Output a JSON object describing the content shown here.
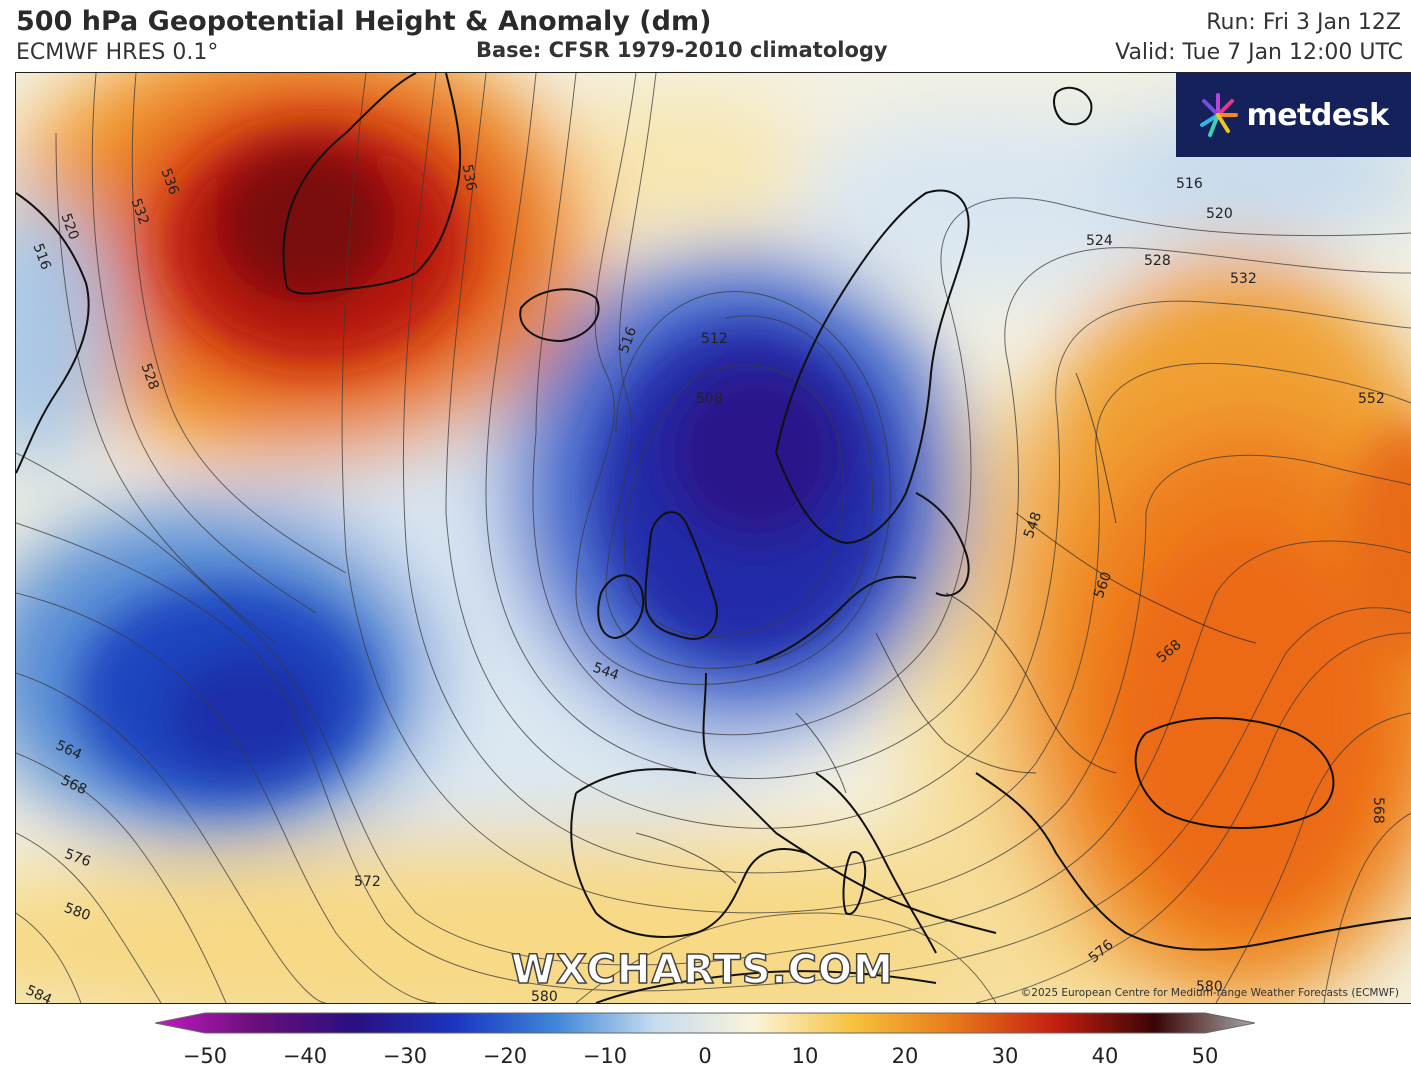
{
  "header": {
    "title": "500 hPa Geopotential Height & Anomaly (dm)",
    "model": "ECMWF HRES 0.1°",
    "base": "Base: CFSR 1979-2010 climatology",
    "run": "Run: Fri 3 Jan 12Z",
    "valid": "Valid: Tue 7 Jan 12:00 UTC"
  },
  "branding": {
    "logo": "metdesk",
    "watermark": "WXCHARTS.COM",
    "copyright": "©2025 European Centre for Medium-range Weather Forecasts (ECMWF)"
  },
  "contour_labels": [
    "508",
    "512",
    "516",
    "520",
    "524",
    "528",
    "532",
    "536",
    "544",
    "548",
    "552",
    "560",
    "564",
    "568",
    "572",
    "576",
    "580",
    "584"
  ],
  "colorbar": {
    "ticks": [
      "−50",
      "−40",
      "−30",
      "−20",
      "−10",
      "0",
      "10",
      "20",
      "30",
      "40",
      "50"
    ],
    "colors": [
      "#c21ac2",
      "#6a0f7a",
      "#2a0f80",
      "#1a35c0",
      "#3f86d8",
      "#c6dcef",
      "#fbf4d8",
      "#f6c13b",
      "#e8781a",
      "#c41e10",
      "#3a0505",
      "#a8a8a8"
    ]
  },
  "map_features": {
    "anomaly_centers": [
      {
        "label": "Greenland positive anomaly",
        "value": 40
      },
      {
        "label": "North Sea low",
        "value": -35
      },
      {
        "label": "Atlantic low",
        "value": -30
      },
      {
        "label": "Eastern Europe high",
        "value": 25
      }
    ]
  }
}
